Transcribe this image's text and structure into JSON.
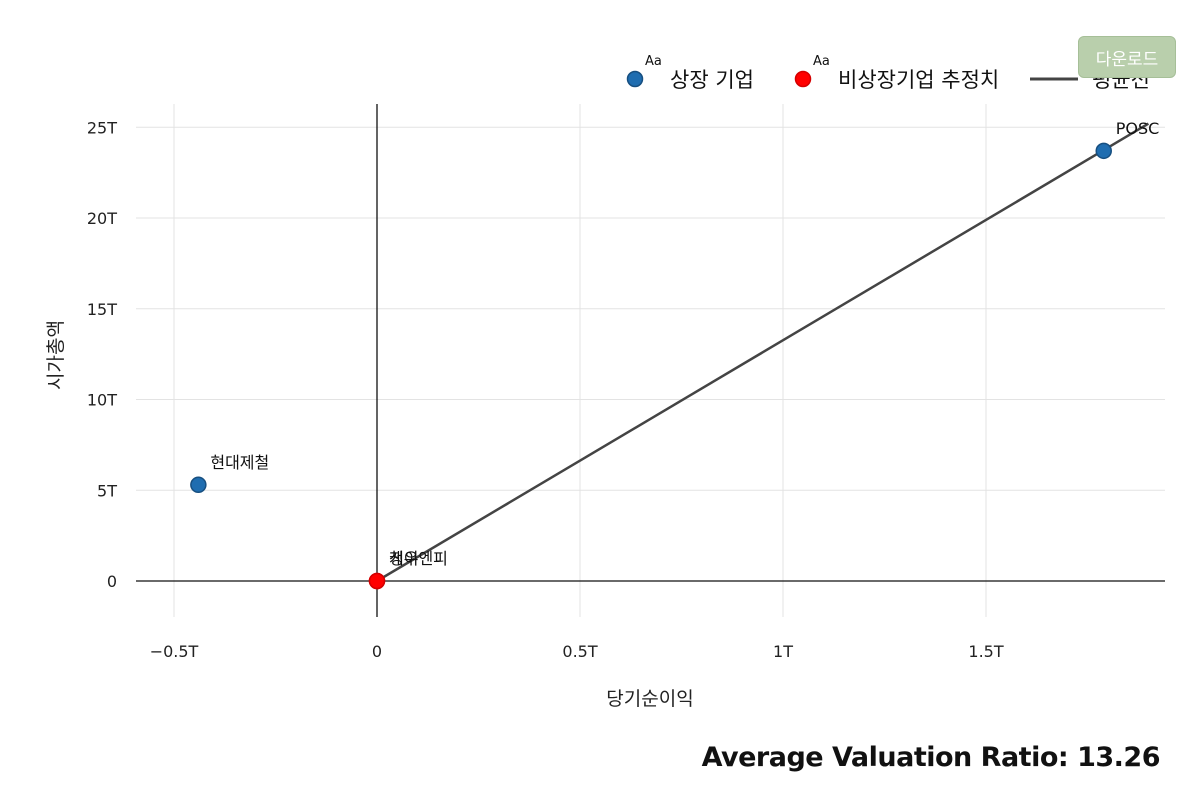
{
  "download_button": {
    "label": "다운로드"
  },
  "footer": {
    "ratio_text": "Average Valuation Ratio: 13.26"
  },
  "legend": {
    "items": [
      {
        "label": "상장 기업",
        "marker": "circle",
        "color": "#1f6db0",
        "superscript": "Aa"
      },
      {
        "label": "비상장기업 추정치",
        "marker": "circle",
        "color": "#ff0000",
        "superscript": "Aa"
      },
      {
        "label": "평균선",
        "marker": "line",
        "color": "#444444"
      }
    ]
  },
  "chart_data": {
    "type": "scatter",
    "xlabel": "당기순이익",
    "ylabel": "시가총액",
    "xlim": [
      -0.5,
      1.94
    ],
    "ylim": [
      -2,
      26
    ],
    "x_ticks": [
      {
        "value": -0.5,
        "label": "−0.5T"
      },
      {
        "value": 0,
        "label": "0"
      },
      {
        "value": 0.5,
        "label": "0.5T"
      },
      {
        "value": 1,
        "label": "1T"
      },
      {
        "value": 1.5,
        "label": "1.5T"
      }
    ],
    "y_ticks": [
      {
        "value": 0,
        "label": "0"
      },
      {
        "value": 5,
        "label": "5T"
      },
      {
        "value": 10,
        "label": "10T"
      },
      {
        "value": 15,
        "label": "15T"
      },
      {
        "value": 20,
        "label": "20T"
      },
      {
        "value": 25,
        "label": "25T"
      }
    ],
    "grid": true,
    "legend_position": "top-right",
    "series": [
      {
        "name": "상장 기업",
        "color": "#1f6db0",
        "points": [
          {
            "x": -0.44,
            "y": 5.3,
            "label": "현대제철"
          },
          {
            "x": 1.79,
            "y": 23.7,
            "label": "POSC"
          }
        ]
      },
      {
        "name": "비상장기업 추정치",
        "color": "#ff0000",
        "points": [
          {
            "x": 0.0,
            "y": 0.0,
            "label": "청우"
          },
          {
            "x": 0.0,
            "y": 0.0,
            "label": "케이엔피"
          }
        ]
      },
      {
        "name": "평균선",
        "color": "#444444",
        "line": [
          {
            "x": 0,
            "y": 0
          },
          {
            "x": 1.9,
            "y": 25.2
          }
        ]
      }
    ]
  }
}
